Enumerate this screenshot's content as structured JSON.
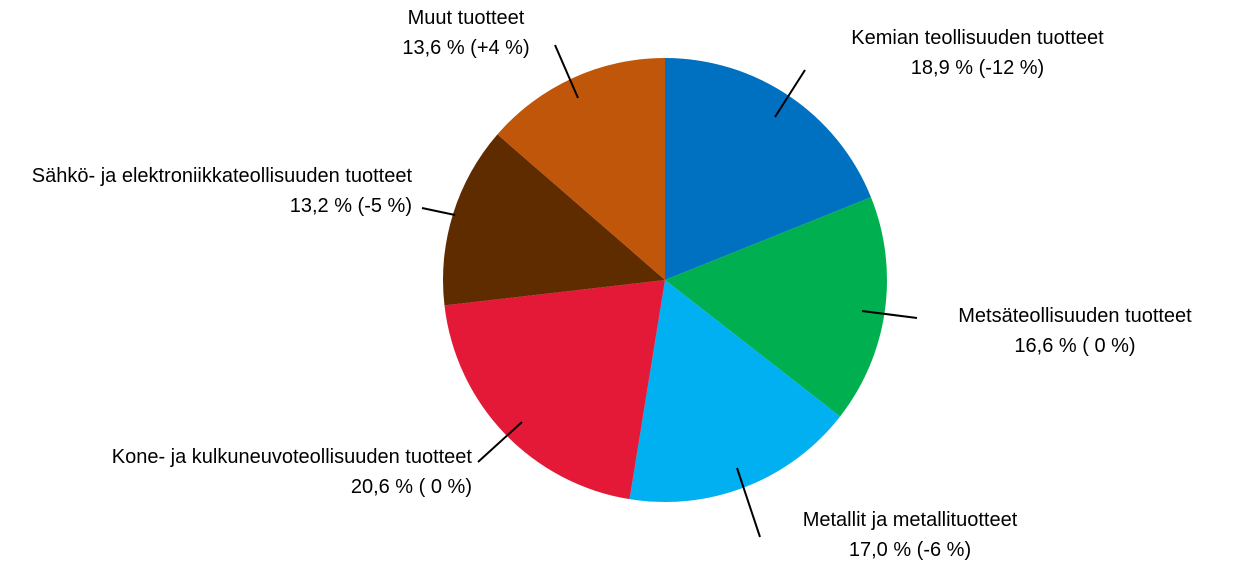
{
  "chart_data": {
    "type": "pie",
    "categories": [
      "Kemian teollisuuden tuotteet",
      "Metsäteollisuuden tuotteet",
      "Metallit ja metallituotteet",
      "Kone- ja kulkuneuvoteollisuuden tuotteet",
      "Sähkö- ja elektroniikkateollisuuden tuotteet",
      "Muut tuotteet"
    ],
    "values": [
      18.9,
      16.6,
      17.0,
      20.6,
      13.2,
      13.6
    ],
    "value_labels": [
      "18,9 % (-12 %)",
      "16,6 % ( 0 %)",
      "17,0 % (-6 %)",
      "20,6 % ( 0 %)",
      "13,2 % (-5 %)",
      "13,6 % (+4 %)"
    ],
    "colors": [
      "#0070c0",
      "#00b050",
      "#00b0f0",
      "#e31937",
      "#5f2c00",
      "#c0560a"
    ]
  }
}
